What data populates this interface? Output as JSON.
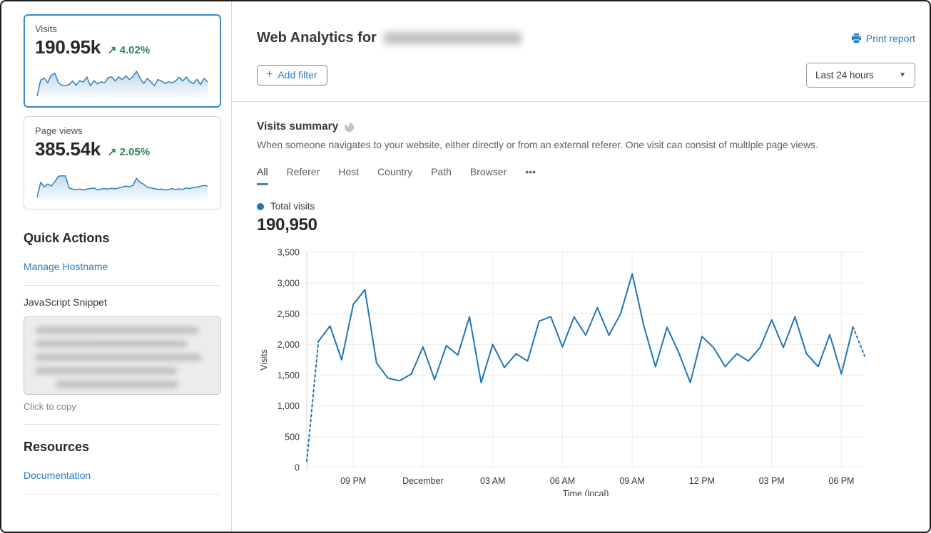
{
  "sidebar": {
    "metric_cards": [
      {
        "label": "Visits",
        "value": "190.95k",
        "delta_symbol": "↗",
        "delta": "4.02%",
        "selected": true,
        "sparkline": [
          3,
          59,
          66,
          50,
          76,
          83,
          49,
          41,
          40,
          43,
          56,
          41,
          57,
          52,
          70,
          39,
          57,
          46,
          53,
          49,
          68,
          70,
          56,
          70,
          61,
          74,
          61,
          71,
          90,
          66,
          47,
          65,
          53,
          39,
          61,
          56,
          47,
          53,
          49,
          56,
          69,
          56,
          70,
          53,
          47,
          62,
          43,
          65,
          52
        ]
      },
      {
        "label": "Page views",
        "value": "385.54k",
        "delta_symbol": "↗",
        "delta": "2.05%",
        "selected": false,
        "sparkline": [
          5,
          58,
          42,
          52,
          45,
          60,
          79,
          81,
          80,
          38,
          34,
          32,
          34,
          31,
          34,
          36,
          38,
          32,
          34,
          36,
          34,
          37,
          35,
          38,
          41,
          45,
          42,
          48,
          72,
          58,
          51,
          41,
          38,
          36,
          33,
          34,
          31,
          33,
          36,
          32,
          35,
          33,
          38,
          36,
          40,
          41,
          44,
          47,
          45
        ]
      }
    ],
    "quick_actions": {
      "title": "Quick Actions",
      "manage_hostname_label": "Manage Hostname",
      "snippet_label": "JavaScript Snippet",
      "copy_hint": "Click to copy"
    },
    "resources": {
      "title": "Resources",
      "documentation_label": "Documentation"
    }
  },
  "header": {
    "title_prefix": "Web Analytics for",
    "print_label": "Print report",
    "add_filter": {
      "icon": "plus",
      "label": "Add filter"
    },
    "time_range": "Last 24 hours"
  },
  "summary": {
    "title": "Visits summary",
    "description": "When someone navigates to your website, either directly or from an external referer. One visit can consist of multiple page views.",
    "tabs": [
      "All",
      "Referer",
      "Host",
      "Country",
      "Path",
      "Browser",
      "•••"
    ],
    "active_tab": "All",
    "legend_label": "Total visits",
    "total_value": "190,950"
  },
  "chart_data": {
    "type": "line",
    "title": "Visits summary",
    "xlabel": "Time (local)",
    "ylabel": "Visits",
    "ylim": [
      0,
      3500
    ],
    "y_ticks": [
      0,
      500,
      1000,
      1500,
      2000,
      2500,
      3000,
      3500
    ],
    "grid": true,
    "legend_position": "top-left",
    "x_ticks": [
      {
        "index": 4,
        "label": "09 PM"
      },
      {
        "index": 10,
        "label": "December"
      },
      {
        "index": 16,
        "label": "03 AM"
      },
      {
        "index": 22,
        "label": "06 AM"
      },
      {
        "index": 28,
        "label": "09 AM"
      },
      {
        "index": 34,
        "label": "12 PM"
      },
      {
        "index": 40,
        "label": "03 PM"
      },
      {
        "index": 46,
        "label": "06 PM"
      }
    ],
    "series": [
      {
        "name": "Total visits",
        "color": "#2274b5",
        "values": [
          100,
          2050,
          2300,
          1750,
          2650,
          2890,
          1700,
          1450,
          1410,
          1520,
          1960,
          1430,
          1980,
          1830,
          2450,
          1380,
          2000,
          1625,
          1850,
          1730,
          2380,
          2450,
          1960,
          2450,
          2150,
          2600,
          2150,
          2500,
          3150,
          2300,
          1640,
          2280,
          1870,
          1380,
          2130,
          1950,
          1640,
          1850,
          1730,
          1950,
          2400,
          1950,
          2450,
          1850,
          1640,
          2160,
          1520,
          2285,
          1810
        ]
      }
    ],
    "dashed_segments": [
      [
        0,
        1
      ],
      [
        47,
        48
      ]
    ]
  }
}
